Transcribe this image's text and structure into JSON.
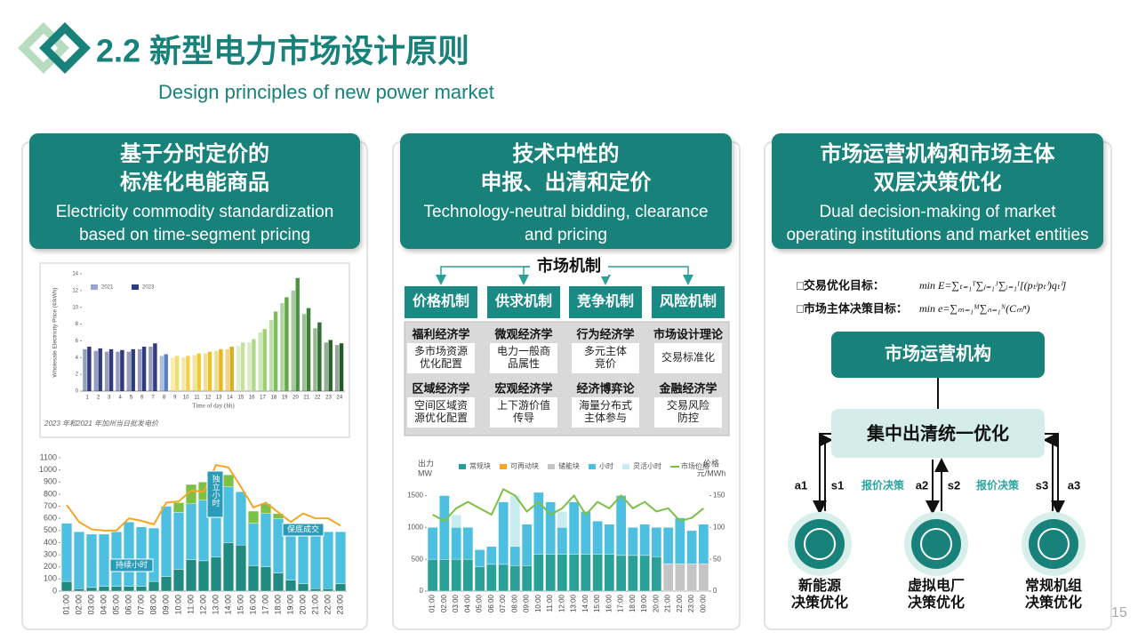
{
  "header": {
    "title": "2.2 新型电力市场设计原则",
    "subtitle": "Design principles of new power market"
  },
  "panels": [
    {
      "title": [
        "基于分时定价的",
        "标准化电能商品"
      ],
      "subtitle": "Electricity commodity standardization based on time-segment pricing"
    },
    {
      "title": [
        "技术中性的",
        "申报、出清和定价"
      ],
      "subtitle": "Technology-neutral bidding, clearance and pricing"
    },
    {
      "title": [
        "市场运营机构和市场主体",
        "双层决策优化"
      ],
      "subtitle": "Dual decision-making of market operating institutions and market entities"
    }
  ],
  "chart_data": [
    {
      "type": "bar",
      "ylabel": "Wholesale Electricity Price (¢/kWh)",
      "xlabel": "Time of day (hh)",
      "caption": "2023 年和2021 年加州当日批发电价",
      "categories": [
        1,
        2,
        3,
        4,
        5,
        6,
        7,
        8,
        9,
        10,
        11,
        12,
        13,
        14,
        15,
        16,
        17,
        18,
        19,
        20,
        21,
        22,
        23,
        24
      ],
      "series": [
        {
          "name": "2021",
          "color": "#9aa3cf",
          "values": [
            5.0,
            4.8,
            4.7,
            4.7,
            4.7,
            5.0,
            5.3,
            4.2,
            4.0,
            4.0,
            4.3,
            4.5,
            4.8,
            5.0,
            5.4,
            5.8,
            7.0,
            8.5,
            10.5,
            12.0,
            9.2,
            7.5,
            5.8,
            5.5
          ]
        },
        {
          "name": "2023",
          "color": "#2f3b7c",
          "values": [
            5.3,
            5.1,
            5.0,
            4.9,
            5.0,
            5.3,
            5.7,
            4.4,
            4.2,
            4.2,
            4.5,
            4.7,
            5.0,
            5.3,
            5.8,
            6.2,
            7.4,
            9.5,
            11.2,
            13.5,
            9.9,
            8.2,
            6.1,
            5.7
          ]
        }
      ],
      "bar_colors": [
        "#2f3b7c",
        "#2f3b7c",
        "#2f3b7c",
        "#2f3b7c",
        "#2f3b7c",
        "#2f3b7c",
        "#2f3b7c",
        "#5b7fc0",
        "#f3dc6a",
        "#f0d050",
        "#edc93a",
        "#e9c22b",
        "#e3b820",
        "#dcae18",
        "#c5e0a0",
        "#b0d88a",
        "#9ccf74",
        "#7fbf5a",
        "#62a94a",
        "#4a943e",
        "#3d7f36",
        "#336f30",
        "#2c622b",
        "#27572a"
      ],
      "ylim": [
        0,
        14
      ],
      "yticks": [
        0,
        2,
        4,
        6,
        8,
        10,
        12,
        14
      ],
      "grid": false,
      "legend": true
    },
    {
      "type": "bar",
      "stacked": true,
      "categories": [
        "01:00",
        "02:00",
        "03:00",
        "04:00",
        "05:00",
        "06:00",
        "07:00",
        "08:00",
        "09:00",
        "10:00",
        "11:00",
        "12:00",
        "13:00",
        "14:00",
        "15:00",
        "16:00",
        "17:00",
        "18:00",
        "19:00",
        "20:00",
        "21:00",
        "22:00",
        "23:00"
      ],
      "series": [
        {
          "color": "#1f8a80",
          "values": [
            80,
            20,
            30,
            40,
            40,
            40,
            40,
            80,
            120,
            180,
            260,
            250,
            280,
            400,
            380,
            210,
            200,
            150,
            90,
            60,
            20,
            20,
            60
          ]
        },
        {
          "color": "#4dbfe0",
          "values": [
            480,
            470,
            440,
            430,
            450,
            530,
            490,
            440,
            580,
            470,
            460,
            500,
            550,
            460,
            440,
            350,
            440,
            450,
            410,
            460,
            440,
            470,
            430
          ]
        },
        {
          "color": "#7cc046",
          "values": [
            0,
            0,
            0,
            0,
            0,
            0,
            0,
            0,
            0,
            80,
            160,
            150,
            150,
            100,
            0,
            100,
            80,
            40,
            0,
            0,
            0,
            0,
            0
          ]
        },
        {
          "type": "line",
          "color": "#f5a623",
          "values": [
            710,
            570,
            510,
            500,
            500,
            600,
            580,
            550,
            730,
            740,
            830,
            820,
            1040,
            1020,
            860,
            690,
            730,
            650,
            570,
            640,
            600,
            600,
            540
          ]
        }
      ],
      "annotations": [
        "独立小时",
        "保底成交",
        "持续小时"
      ],
      "ylim": [
        0,
        1100
      ],
      "yticks": [
        0,
        100,
        200,
        300,
        400,
        500,
        600,
        700,
        800,
        900,
        1000,
        1100
      ],
      "grid": false
    },
    {
      "type": "bar",
      "stacked": true,
      "ylabel": [
        "出力",
        "MW"
      ],
      "y2label": [
        "价格",
        "元/MWh"
      ],
      "categories": [
        "01:00",
        "02:00",
        "03:00",
        "04:00",
        "05:00",
        "06:00",
        "07:00",
        "08:00",
        "09:00",
        "10:00",
        "11:00",
        "12:00",
        "13:00",
        "14:00",
        "15:00",
        "16:00",
        "17:00",
        "18:00",
        "19:00",
        "20:00",
        "21:00",
        "22:00",
        "23:00",
        "00:00"
      ],
      "series": [
        {
          "name": "常规块",
          "color": "#2aa198",
          "values": [
            500,
            500,
            500,
            500,
            380,
            420,
            420,
            400,
            400,
            580,
            580,
            580,
            580,
            580,
            580,
            580,
            560,
            560,
            560,
            540,
            0,
            0,
            0,
            0
          ]
        },
        {
          "name": "可再动块",
          "color": "#f5a623",
          "values": [
            0,
            0,
            0,
            0,
            0,
            0,
            0,
            0,
            0,
            0,
            0,
            0,
            0,
            0,
            0,
            0,
            0,
            0,
            0,
            0,
            0,
            0,
            0,
            0
          ]
        },
        {
          "name": "储能块",
          "color": "#c4c4c4",
          "values": [
            0,
            0,
            0,
            0,
            0,
            0,
            0,
            0,
            0,
            0,
            0,
            0,
            0,
            0,
            0,
            0,
            0,
            0,
            0,
            0,
            430,
            430,
            430,
            430
          ]
        },
        {
          "name": "小时",
          "color": "#4dbfe0",
          "values": [
            500,
            1000,
            500,
            500,
            270,
            280,
            980,
            300,
            650,
            970,
            820,
            420,
            820,
            670,
            520,
            470,
            940,
            440,
            490,
            460,
            570,
            720,
            520,
            620
          ]
        },
        {
          "name": "灵活小时",
          "color": "#c8ecef",
          "values": [
            0,
            0,
            200,
            0,
            0,
            0,
            0,
            800,
            0,
            0,
            0,
            250,
            0,
            0,
            0,
            0,
            0,
            0,
            0,
            0,
            0,
            0,
            0,
            0
          ]
        },
        {
          "name": "市场价格",
          "type": "line",
          "axis": "y2",
          "color": "#7cc046",
          "values": [
            120,
            110,
            130,
            140,
            130,
            120,
            160,
            150,
            125,
            140,
            120,
            130,
            150,
            120,
            140,
            130,
            150,
            130,
            140,
            125,
            130,
            110,
            115,
            130
          ]
        }
      ],
      "ylim": [
        0,
        1800
      ],
      "yticks": [
        0,
        500,
        1000,
        1500
      ],
      "y2lim": [
        0,
        180
      ],
      "y2ticks": [
        0,
        50,
        100,
        150
      ],
      "grid": false,
      "legend": true
    }
  ],
  "mechanism": {
    "title": "市场机制",
    "mechanisms": [
      "价格机制",
      "供求机制",
      "竞争机制",
      "风险机制"
    ],
    "theories": [
      {
        "name": "福利经济学",
        "lines": [
          "多市场资源",
          "优化配置"
        ]
      },
      {
        "name": "微观经济学",
        "lines": [
          "电力一般商",
          "品属性"
        ]
      },
      {
        "name": "行为经济学",
        "lines": [
          "多元主体",
          "竞价"
        ]
      },
      {
        "name": "市场设计理论",
        "lines": [
          "交易标准化"
        ]
      },
      {
        "name": "区域经济学",
        "lines": [
          "空间区域资",
          "源优化配置"
        ]
      },
      {
        "name": "宏观经济学",
        "lines": [
          "上下游价值",
          "传导"
        ]
      },
      {
        "name": "经济博弈论",
        "lines": [
          "海量分布式",
          "主体参与"
        ]
      },
      {
        "name": "金融经济学",
        "lines": [
          "交易风险",
          "防控"
        ]
      }
    ]
  },
  "decision": {
    "objectives": [
      {
        "label": "□交易优化目标：",
        "formula": "min E=∑ₜ₌₁ᵀ∑ⱼ₌₁ᴶ∑ᵢ₌₁ᴵ[(pₜʲpₜⁱ)qₜⁱ]"
      },
      {
        "label": "□市场主体决策目标：",
        "formula": "min e=∑ₘ₌₁ᴹ∑ₙ₌₁ᴺ(Cₘⁿ)"
      }
    ],
    "operator": "市场运营机构",
    "clearing": "集中出清统一优化",
    "labels": [
      "a1",
      "s1",
      "报价决策",
      "a2",
      "s2",
      "报价决策",
      "s3",
      "a3"
    ],
    "entities": [
      [
        "新能源",
        "决策优化"
      ],
      [
        "虚拟电厂",
        "决策优化"
      ],
      [
        "常规机组",
        "决策优化"
      ]
    ]
  },
  "page_number": 15
}
